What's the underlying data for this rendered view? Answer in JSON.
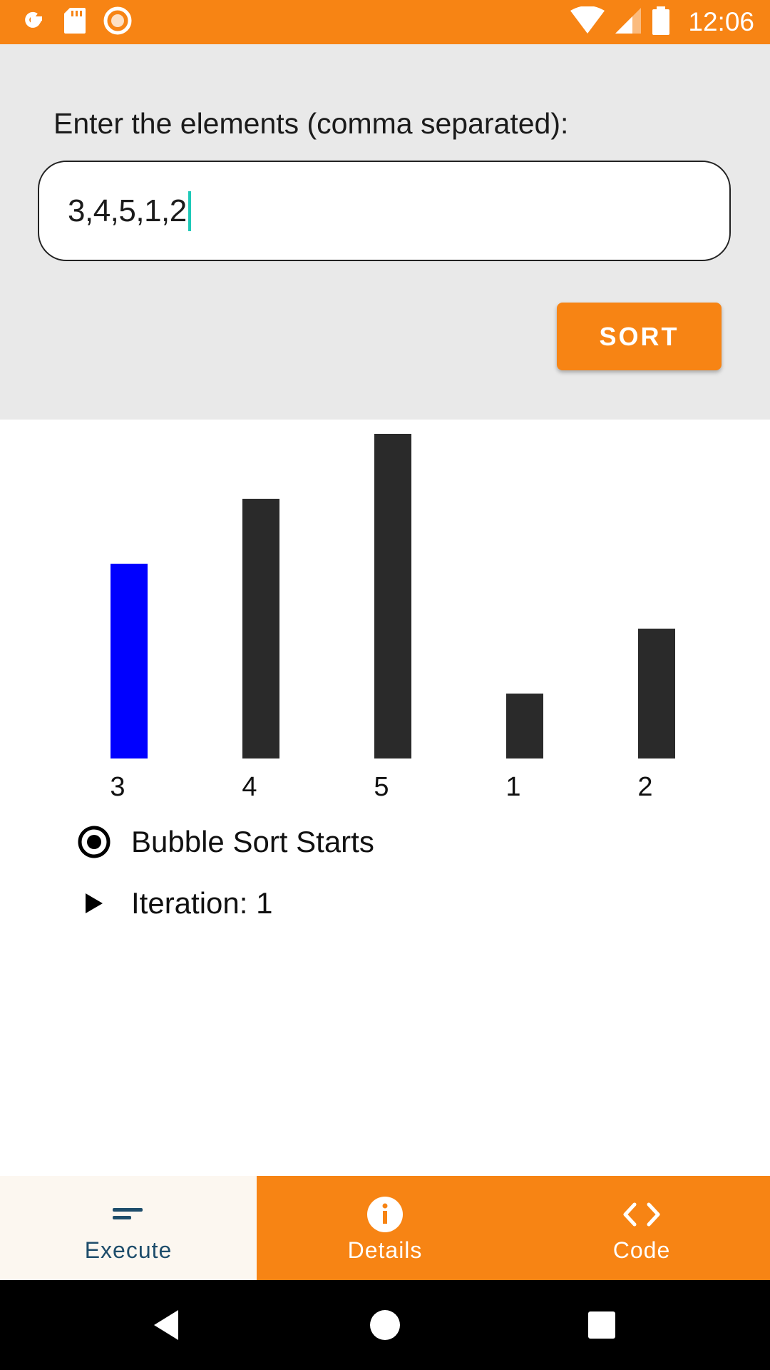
{
  "status_bar": {
    "time": "12:06",
    "left_icons": [
      "google-icon",
      "sd-card-icon",
      "record-icon"
    ],
    "right_icons": [
      "wifi-icon",
      "signal-icon",
      "battery-icon"
    ],
    "background": "#f78414"
  },
  "input_panel": {
    "prompt": "Enter the elements (comma separated):",
    "input_value": "3,4,5,1,2",
    "sort_label": "SORT"
  },
  "chart_data": {
    "type": "bar",
    "categories": [
      "3",
      "4",
      "5",
      "1",
      "2"
    ],
    "values": [
      3,
      4,
      5,
      1,
      2
    ],
    "highlight_index": 0,
    "highlight_color": "#0000ff",
    "bar_color": "#2a2a2a",
    "ylim": [
      0,
      5
    ],
    "grid": false
  },
  "steps": [
    {
      "icon": "radio-selected-icon",
      "text": "Bubble Sort Starts"
    },
    {
      "icon": "play-arrow-icon",
      "text": "Iteration: 1"
    }
  ],
  "bottom_nav": {
    "items": [
      {
        "icon": "sort-lines-icon",
        "label": "Execute",
        "active": true
      },
      {
        "icon": "info-icon",
        "label": "Details",
        "active": false
      },
      {
        "icon": "code-icon",
        "label": "Code",
        "active": false
      }
    ],
    "accent": "#f78414",
    "active_text_color": "#1e4d6b"
  },
  "system_nav": {
    "buttons": [
      "back-icon",
      "home-icon",
      "recents-icon"
    ]
  }
}
